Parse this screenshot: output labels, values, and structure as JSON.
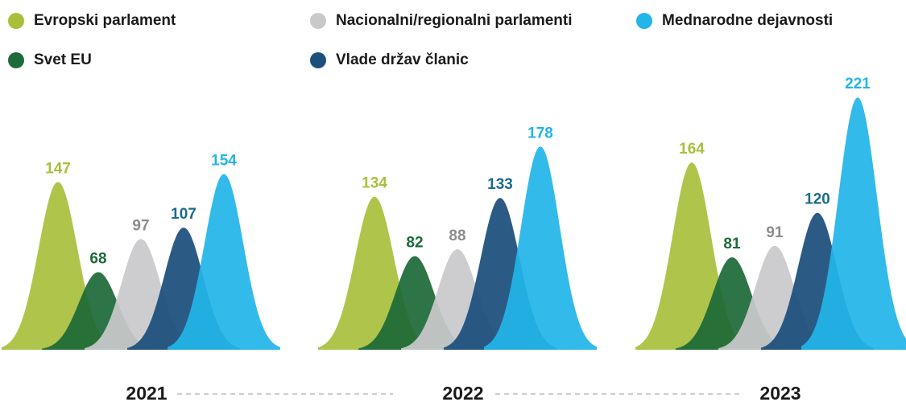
{
  "chart_data": {
    "type": "bar",
    "categories": [
      "2021",
      "2022",
      "2023"
    ],
    "series": [
      {
        "name": "Evropski parlament",
        "color": "#a9bf3c",
        "label_color": "#a9bf3c",
        "values": [
          147,
          134,
          164
        ]
      },
      {
        "name": "Svet EU",
        "color": "#1d6b38",
        "label_color": "#1d6b38",
        "values": [
          68,
          82,
          81
        ]
      },
      {
        "name": "Nacionalni/regionalni parlamenti",
        "color": "#c9c9cb",
        "label_color": "#8c8c8e",
        "values": [
          97,
          88,
          91
        ]
      },
      {
        "name": "Vlade držav članic",
        "color": "#1b4f7c",
        "label_color": "#1b6b8a",
        "values": [
          107,
          133,
          120
        ]
      },
      {
        "name": "Mednarodne dejavnosti",
        "color": "#22b5e8",
        "label_color": "#22b5e8",
        "values": [
          154,
          178,
          221
        ]
      }
    ]
  }
}
